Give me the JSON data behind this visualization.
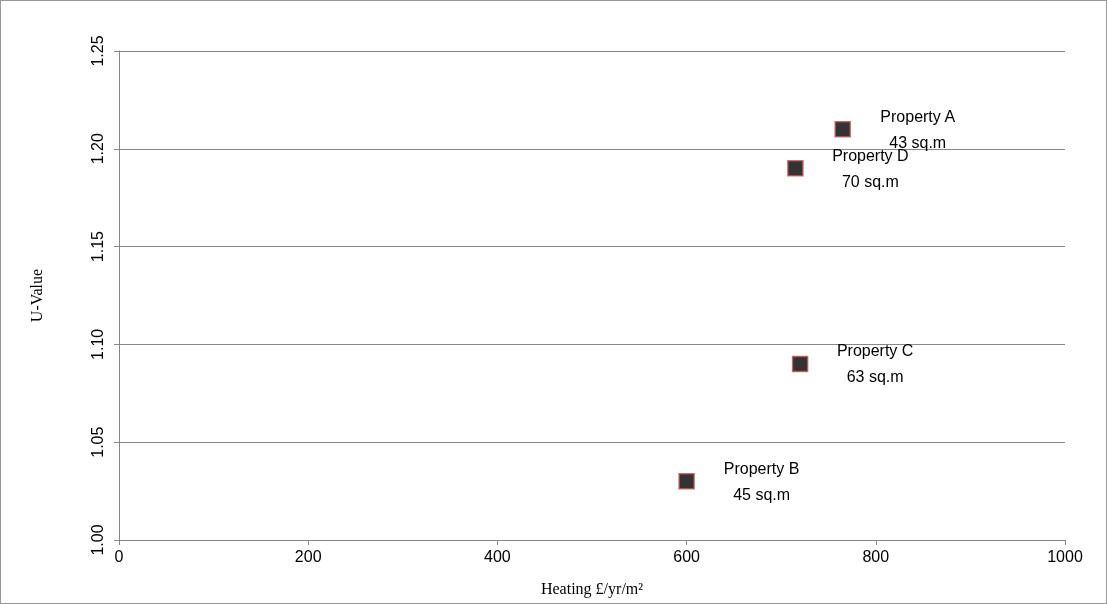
{
  "chart_data": {
    "type": "scatter",
    "xlabel": "Heating £/yr/m²",
    "ylabel": "U-Value",
    "x": [
      765,
      715,
      720,
      600
    ],
    "values": [
      1.21,
      1.19,
      1.09,
      1.03
    ],
    "color": "#000000",
    "marker": "square",
    "xlim": [
      0,
      1000
    ],
    "xticks": [
      0,
      200,
      400,
      600,
      800,
      1000
    ],
    "ylim": [
      1,
      1.25
    ],
    "yticks": [
      {
        "value": 1,
        "label": "1.00"
      },
      {
        "value": 1.05,
        "label": "1.05"
      },
      {
        "value": 1.1,
        "label": "1.10"
      },
      {
        "value": 1.15,
        "label": "1.15"
      },
      {
        "value": 1.2,
        "label": "1.20"
      },
      {
        "value": 1.25,
        "label": "1.25"
      }
    ],
    "grid": "y",
    "annotations": [
      {
        "text": "Property A\n43 sq.m",
        "x": 765,
        "y": 1.21
      },
      {
        "text": "Property D\n70 sq.m",
        "x": 715,
        "y": 1.19
      },
      {
        "text": "Property C\n63 sq.m",
        "x": 720,
        "y": 1.09
      },
      {
        "text": "Property B\n45 sq.m",
        "x": 600,
        "y": 1.03
      }
    ]
  }
}
